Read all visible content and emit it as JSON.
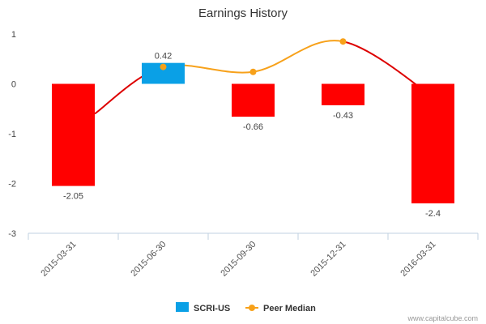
{
  "chart_data": {
    "type": "bar",
    "title": "Earnings History",
    "xlabel": "",
    "ylabel": "",
    "ylim": [
      -3,
      1.3
    ],
    "yticks": [
      1,
      0,
      -1,
      -2,
      -3
    ],
    "categories": [
      "2015-03-31",
      "2015-06-30",
      "2015-09-30",
      "2015-12-31",
      "2016-03-31"
    ],
    "series": [
      {
        "name": "SCRI-US",
        "type": "bar",
        "values": [
          -2.05,
          0.42,
          -0.66,
          -0.43,
          -2.4
        ],
        "labels": [
          "-2.05",
          "0.42",
          "-0.66",
          "-0.43",
          "-2.4"
        ],
        "positive_color": "#0aa0e6",
        "negative_color": "#ff0000"
      },
      {
        "name": "Peer Median",
        "type": "line",
        "values": [
          null,
          0.34,
          0.24,
          0.85,
          null
        ],
        "color": "#f7a11a",
        "marker": "circle"
      }
    ],
    "connector_color": "#dd0000",
    "legend_position": "bottom-center"
  },
  "credit": "www.capitalcube.com"
}
